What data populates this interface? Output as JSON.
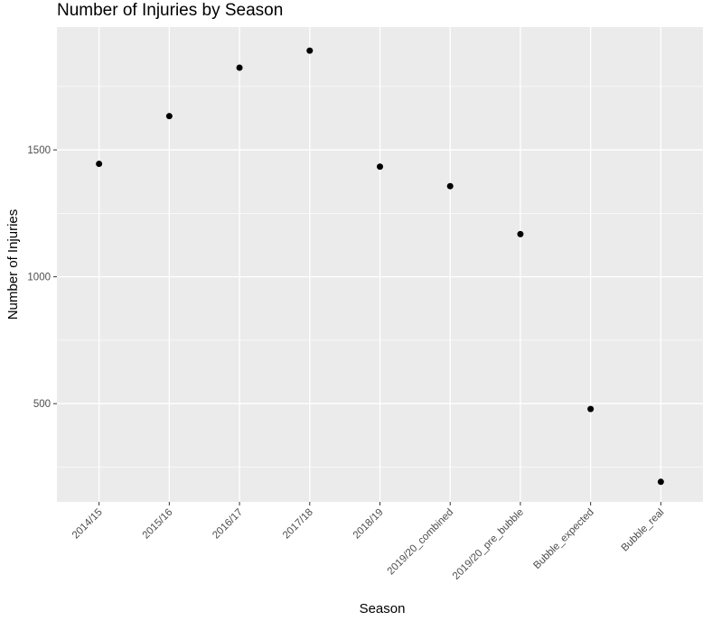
{
  "chart_data": {
    "type": "scatter",
    "title": "Number of Injuries by Season",
    "xlabel": "Season",
    "ylabel": "Number of Injuries",
    "categories": [
      "2014/15",
      "2015/16",
      "2016/17",
      "2017/18",
      "2018/19",
      "2019/20_combined",
      "2019/20_pre_bubble",
      "Bubble_expected",
      "Bubble_real"
    ],
    "values": [
      1445,
      1633,
      1824,
      1891,
      1434,
      1357,
      1168,
      479,
      192
    ],
    "yticks": [
      500,
      1000,
      1500
    ],
    "ylim": [
      113,
      1984
    ],
    "grid": true,
    "colors": {
      "panel": "#ebebeb",
      "grid": "#ffffff",
      "point": "#000000"
    }
  }
}
